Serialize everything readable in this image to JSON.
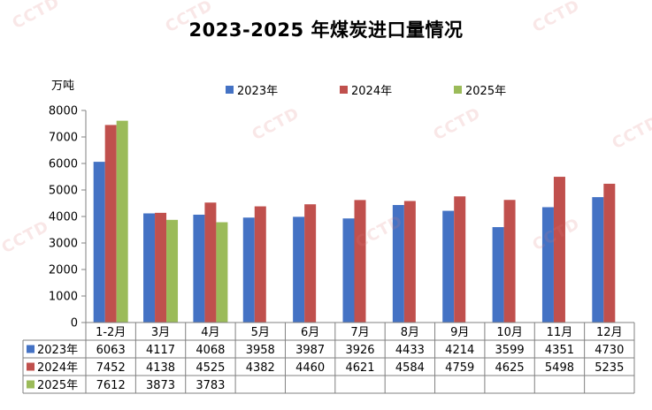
{
  "chart_data": {
    "type": "bar",
    "title": "2023-2025 年煤炭进口量情况",
    "ylabel": "万吨",
    "ylim": [
      0,
      8000
    ],
    "yticks": [
      0,
      1000,
      2000,
      3000,
      4000,
      5000,
      6000,
      7000,
      8000
    ],
    "grid": false,
    "legend_position": "top",
    "categories": [
      "1-2月",
      "3月",
      "4月",
      "5月",
      "6月",
      "7月",
      "8月",
      "9月",
      "10月",
      "11月",
      "12月"
    ],
    "series": [
      {
        "name": "2023年",
        "color": "#4472C4",
        "values": [
          6063,
          4117,
          4068,
          3958,
          3987,
          3926,
          4433,
          4214,
          3599,
          4351,
          4730
        ]
      },
      {
        "name": "2024年",
        "color": "#C0504D",
        "values": [
          7452,
          4138,
          4525,
          4382,
          4460,
          4621,
          4584,
          4759,
          4625,
          5498,
          5235
        ]
      },
      {
        "name": "2025年",
        "color": "#9BBB59",
        "values": [
          7612,
          3873,
          3783,
          null,
          null,
          null,
          null,
          null,
          null,
          null,
          null
        ]
      }
    ]
  },
  "watermark": "CCTD"
}
